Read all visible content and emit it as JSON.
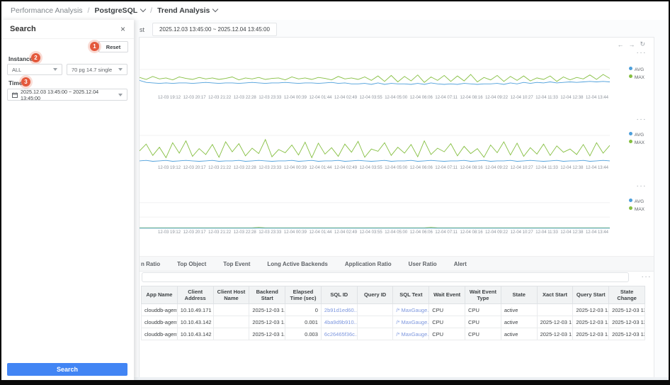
{
  "breadcrumb": {
    "items": [
      {
        "label": "Performance Analysis",
        "dropdown": false
      },
      {
        "label": "PostgreSQL",
        "dropdown": true
      },
      {
        "label": "Trend Analysis",
        "dropdown": true
      }
    ],
    "separator": "/"
  },
  "search_panel": {
    "title": "Search",
    "close_icon": "×",
    "reset_button": "Reset",
    "step_badges": [
      "1",
      "2",
      "3"
    ],
    "instance_field": {
      "label": "Instance",
      "required_mark": "*",
      "instance_select": "ALL",
      "type_select": "70 pg 14.7 single"
    },
    "time_field": {
      "label": "Time",
      "required_mark": "*",
      "range_value": "2025.12.03 13:45:00 ~ 2025.12.04 13:45:00"
    },
    "search_button": "Search"
  },
  "toolbar": {
    "partial_text": "st",
    "time_range": "2025.12.03 13:45:00 ~ 2025.12.04 13:45:00"
  },
  "chart_toolbar": {
    "back_icon": "←",
    "forward_icon": "→",
    "refresh_icon": "↻",
    "more_icon": "···"
  },
  "chart_data": [
    {
      "type": "line",
      "title": "",
      "xlabel": "",
      "ylabel": "",
      "ylim": [
        0,
        100
      ],
      "y_axis_hidden_behind_panel": true,
      "legend_position": "right",
      "gridlines_pct": [
        50
      ],
      "categories": [
        "12-03 19:12",
        "12-03 20:17",
        "12-03 21:22",
        "12-03 22:28",
        "12-03 23:33",
        "12-04 00:39",
        "12-04 01:44",
        "12-04 02:49",
        "12-04 03:55",
        "12-04 05:00",
        "12-04 06:06",
        "12-04 07:11",
        "12-04 08:16",
        "12-04 09:22",
        "12-04 10:27",
        "12-04 11:33",
        "12-04 12:38",
        "12-04 13:44"
      ],
      "series": [
        {
          "name": "MAX",
          "color": "#85bf41",
          "values": [
            34,
            30,
            36,
            31,
            33,
            29,
            35,
            32,
            30,
            34,
            31,
            33,
            30,
            32,
            35,
            29,
            33,
            31,
            34,
            30,
            32,
            33,
            29,
            35,
            31,
            33,
            30,
            34,
            32,
            29,
            36,
            31,
            33,
            30,
            35,
            28,
            37,
            26,
            38,
            25,
            36,
            27,
            39,
            24,
            35,
            28,
            38,
            26,
            37,
            27,
            40,
            25,
            34,
            29,
            38,
            26,
            36,
            28,
            37,
            27,
            33,
            30,
            37,
            26,
            35,
            29,
            34,
            31,
            39,
            30,
            40,
            32
          ]
        },
        {
          "name": "AVG",
          "color": "#4d9fdb",
          "values": [
            28,
            24,
            23,
            22,
            23,
            22,
            23,
            23,
            22,
            23,
            24,
            23,
            22,
            23,
            23,
            22,
            23,
            24,
            23,
            22,
            23,
            23,
            24,
            23,
            22,
            23,
            23,
            22,
            23,
            24,
            22,
            23,
            21,
            21,
            22,
            20,
            23,
            20,
            22,
            21,
            21,
            20,
            22,
            20,
            23,
            21,
            20,
            21,
            20,
            22,
            21,
            20,
            21,
            21,
            22,
            20,
            23,
            21,
            24,
            22,
            24,
            23,
            25,
            23,
            24,
            25,
            24,
            25,
            26,
            25,
            26,
            25
          ]
        }
      ]
    },
    {
      "type": "line",
      "title": "",
      "xlabel": "",
      "ylabel": "",
      "ylim": [
        0,
        100
      ],
      "y_axis_hidden_behind_panel": true,
      "legend_position": "right",
      "gridlines_pct": [
        36
      ],
      "categories": [
        "12-03 19:12",
        "12-03 20:17",
        "12-03 21:22",
        "12-03 22:28",
        "12-03 23:33",
        "12-04 00:39",
        "12-04 01:44",
        "12-04 02:49",
        "12-04 03:55",
        "12-04 05:00",
        "12-04 06:06",
        "12-04 07:11",
        "12-04 08:16",
        "12-04 09:22",
        "12-04 10:27",
        "12-04 11:33",
        "12-04 12:38",
        "12-04 13:44"
      ],
      "series": [
        {
          "name": "MAX",
          "color": "#85bf41",
          "values": [
            30,
            45,
            20,
            38,
            15,
            48,
            25,
            52,
            18,
            35,
            22,
            44,
            16,
            50,
            28,
            46,
            19,
            36,
            24,
            55,
            17,
            33,
            26,
            43,
            21,
            49,
            15,
            47,
            23,
            37,
            18,
            45,
            27,
            51,
            16,
            34,
            29,
            48,
            20,
            38,
            25,
            44,
            17,
            52,
            22,
            36,
            28,
            46,
            19,
            40,
            24,
            35,
            16,
            43,
            26,
            50,
            21,
            47,
            18,
            37,
            23,
            45,
            20,
            41,
            27,
            34,
            22,
            44,
            19,
            48,
            25,
            42
          ]
        },
        {
          "name": "AVG",
          "color": "#4d9fdb",
          "values": [
            8,
            9,
            7,
            8,
            9,
            7,
            8,
            9,
            8,
            7,
            8,
            9,
            7,
            8,
            8,
            9,
            7,
            8,
            9,
            8,
            7,
            8,
            8,
            9,
            7,
            8,
            9,
            7,
            8,
            8,
            9,
            7,
            8,
            9,
            8,
            7,
            8,
            9,
            7,
            8,
            8,
            9,
            7,
            8,
            9,
            8,
            7,
            8,
            8,
            9,
            7,
            8,
            9,
            7,
            8,
            8,
            9,
            7,
            8,
            9,
            8,
            7,
            8,
            9,
            7,
            8,
            8,
            9,
            7,
            8,
            9,
            8
          ]
        }
      ]
    },
    {
      "type": "line",
      "title": "",
      "xlabel": "",
      "ylabel": "",
      "ylim": [
        0,
        100
      ],
      "y_axis_hidden_behind_panel": true,
      "legend_position": "right",
      "gridlines_pct": [
        36,
        71
      ],
      "categories": [
        "12-03 19:12",
        "12-03 20:17",
        "12-03 21:22",
        "12-03 22:28",
        "12-03 23:33",
        "12-04 00:39",
        "12-04 01:44",
        "12-04 02:49",
        "12-04 03:55",
        "12-04 05:00",
        "12-04 06:06",
        "12-04 07:11",
        "12-04 08:16",
        "12-04 09:22",
        "12-04 10:27",
        "12-04 11:33",
        "12-04 12:38",
        "12-04 13:44"
      ],
      "series": [
        {
          "name": "MAX",
          "color": "#85bf41",
          "values": [
            3,
            3,
            3,
            3,
            3,
            3,
            3,
            3,
            3,
            3,
            3,
            3,
            3,
            3,
            3,
            3,
            3,
            3,
            4,
            3,
            3,
            3,
            3,
            3,
            3,
            3,
            3,
            3,
            3,
            3,
            3,
            3,
            3,
            3,
            3,
            3,
            3,
            3,
            3,
            3,
            3,
            3,
            3,
            3,
            4,
            3,
            3,
            3,
            3,
            3,
            3,
            3,
            3,
            3,
            3,
            3,
            3,
            3,
            3,
            3,
            3,
            3,
            3,
            3,
            3,
            3,
            3,
            3,
            3,
            3,
            3,
            3
          ]
        },
        {
          "name": "AVG",
          "color": "#4d9fdb",
          "values": [
            2,
            2,
            2,
            2,
            2,
            2,
            2,
            2,
            2,
            2,
            2,
            2,
            2,
            2,
            2,
            2,
            2,
            2,
            2,
            2,
            2,
            2,
            2,
            2,
            2,
            2,
            2,
            2,
            2,
            2,
            2,
            2,
            2,
            2,
            2,
            2,
            2,
            2,
            2,
            2,
            2,
            2,
            2,
            2,
            2,
            2,
            2,
            2,
            2,
            2,
            2,
            2,
            2,
            2,
            2,
            2,
            2,
            2,
            2,
            2,
            2,
            2,
            2,
            2,
            2,
            2,
            2,
            2,
            2,
            2,
            2,
            2
          ]
        }
      ]
    }
  ],
  "tabs": [
    "n Ratio",
    "Top Object",
    "Top Event",
    "Long Active Backends",
    "Application Ratio",
    "User Ratio",
    "Alert"
  ],
  "grid_toolbar": {
    "filter_value": "",
    "more_icon": "···"
  },
  "table": {
    "columns": [
      "App Name",
      "Client Address",
      "Client Host Name",
      "Backend Start",
      "Elapsed Time (sec)",
      "SQL ID",
      "Query ID",
      "SQL Text",
      "Wait Event",
      "Wait Event Type",
      "State",
      "Xact Start",
      "Query Start",
      "State Change"
    ],
    "link_columns": [
      5,
      7
    ],
    "numeric_columns": [
      4
    ],
    "rows": [
      [
        "clouddb-agent",
        "10.10.49.171",
        "",
        "2025-12-03 1...",
        "0",
        "2b91d1ed60...",
        "",
        "/* MaxGauge...",
        "CPU",
        "CPU",
        "active",
        "",
        "2025-12-03 1...",
        "2025-12-03 13:..."
      ],
      [
        "clouddb-agent",
        "10.10.43.142",
        "",
        "2025-12-03 1...",
        "0.001",
        "4ba9d9b910...",
        "",
        "/* MaxGauge...",
        "CPU",
        "CPU",
        "active",
        "2025-12-03 1...",
        "2025-12-03 1...",
        "2025-12-03 13:..."
      ],
      [
        "clouddb-agent",
        "10.10.43.142",
        "",
        "2025-12-03 1...",
        "0.003",
        "6c26465f36c...",
        "",
        "/* MaxGauge...",
        "CPU",
        "CPU",
        "active",
        "2025-12-03 1...",
        "2025-12-03 1...",
        "2025-12-03 13:..."
      ]
    ]
  },
  "colors": {
    "avg_line": "#4d9fdb",
    "max_line": "#85bf41",
    "accent_blue": "#4285f4",
    "badge_orange": "#e4593c",
    "table_link": "#7d97de"
  }
}
